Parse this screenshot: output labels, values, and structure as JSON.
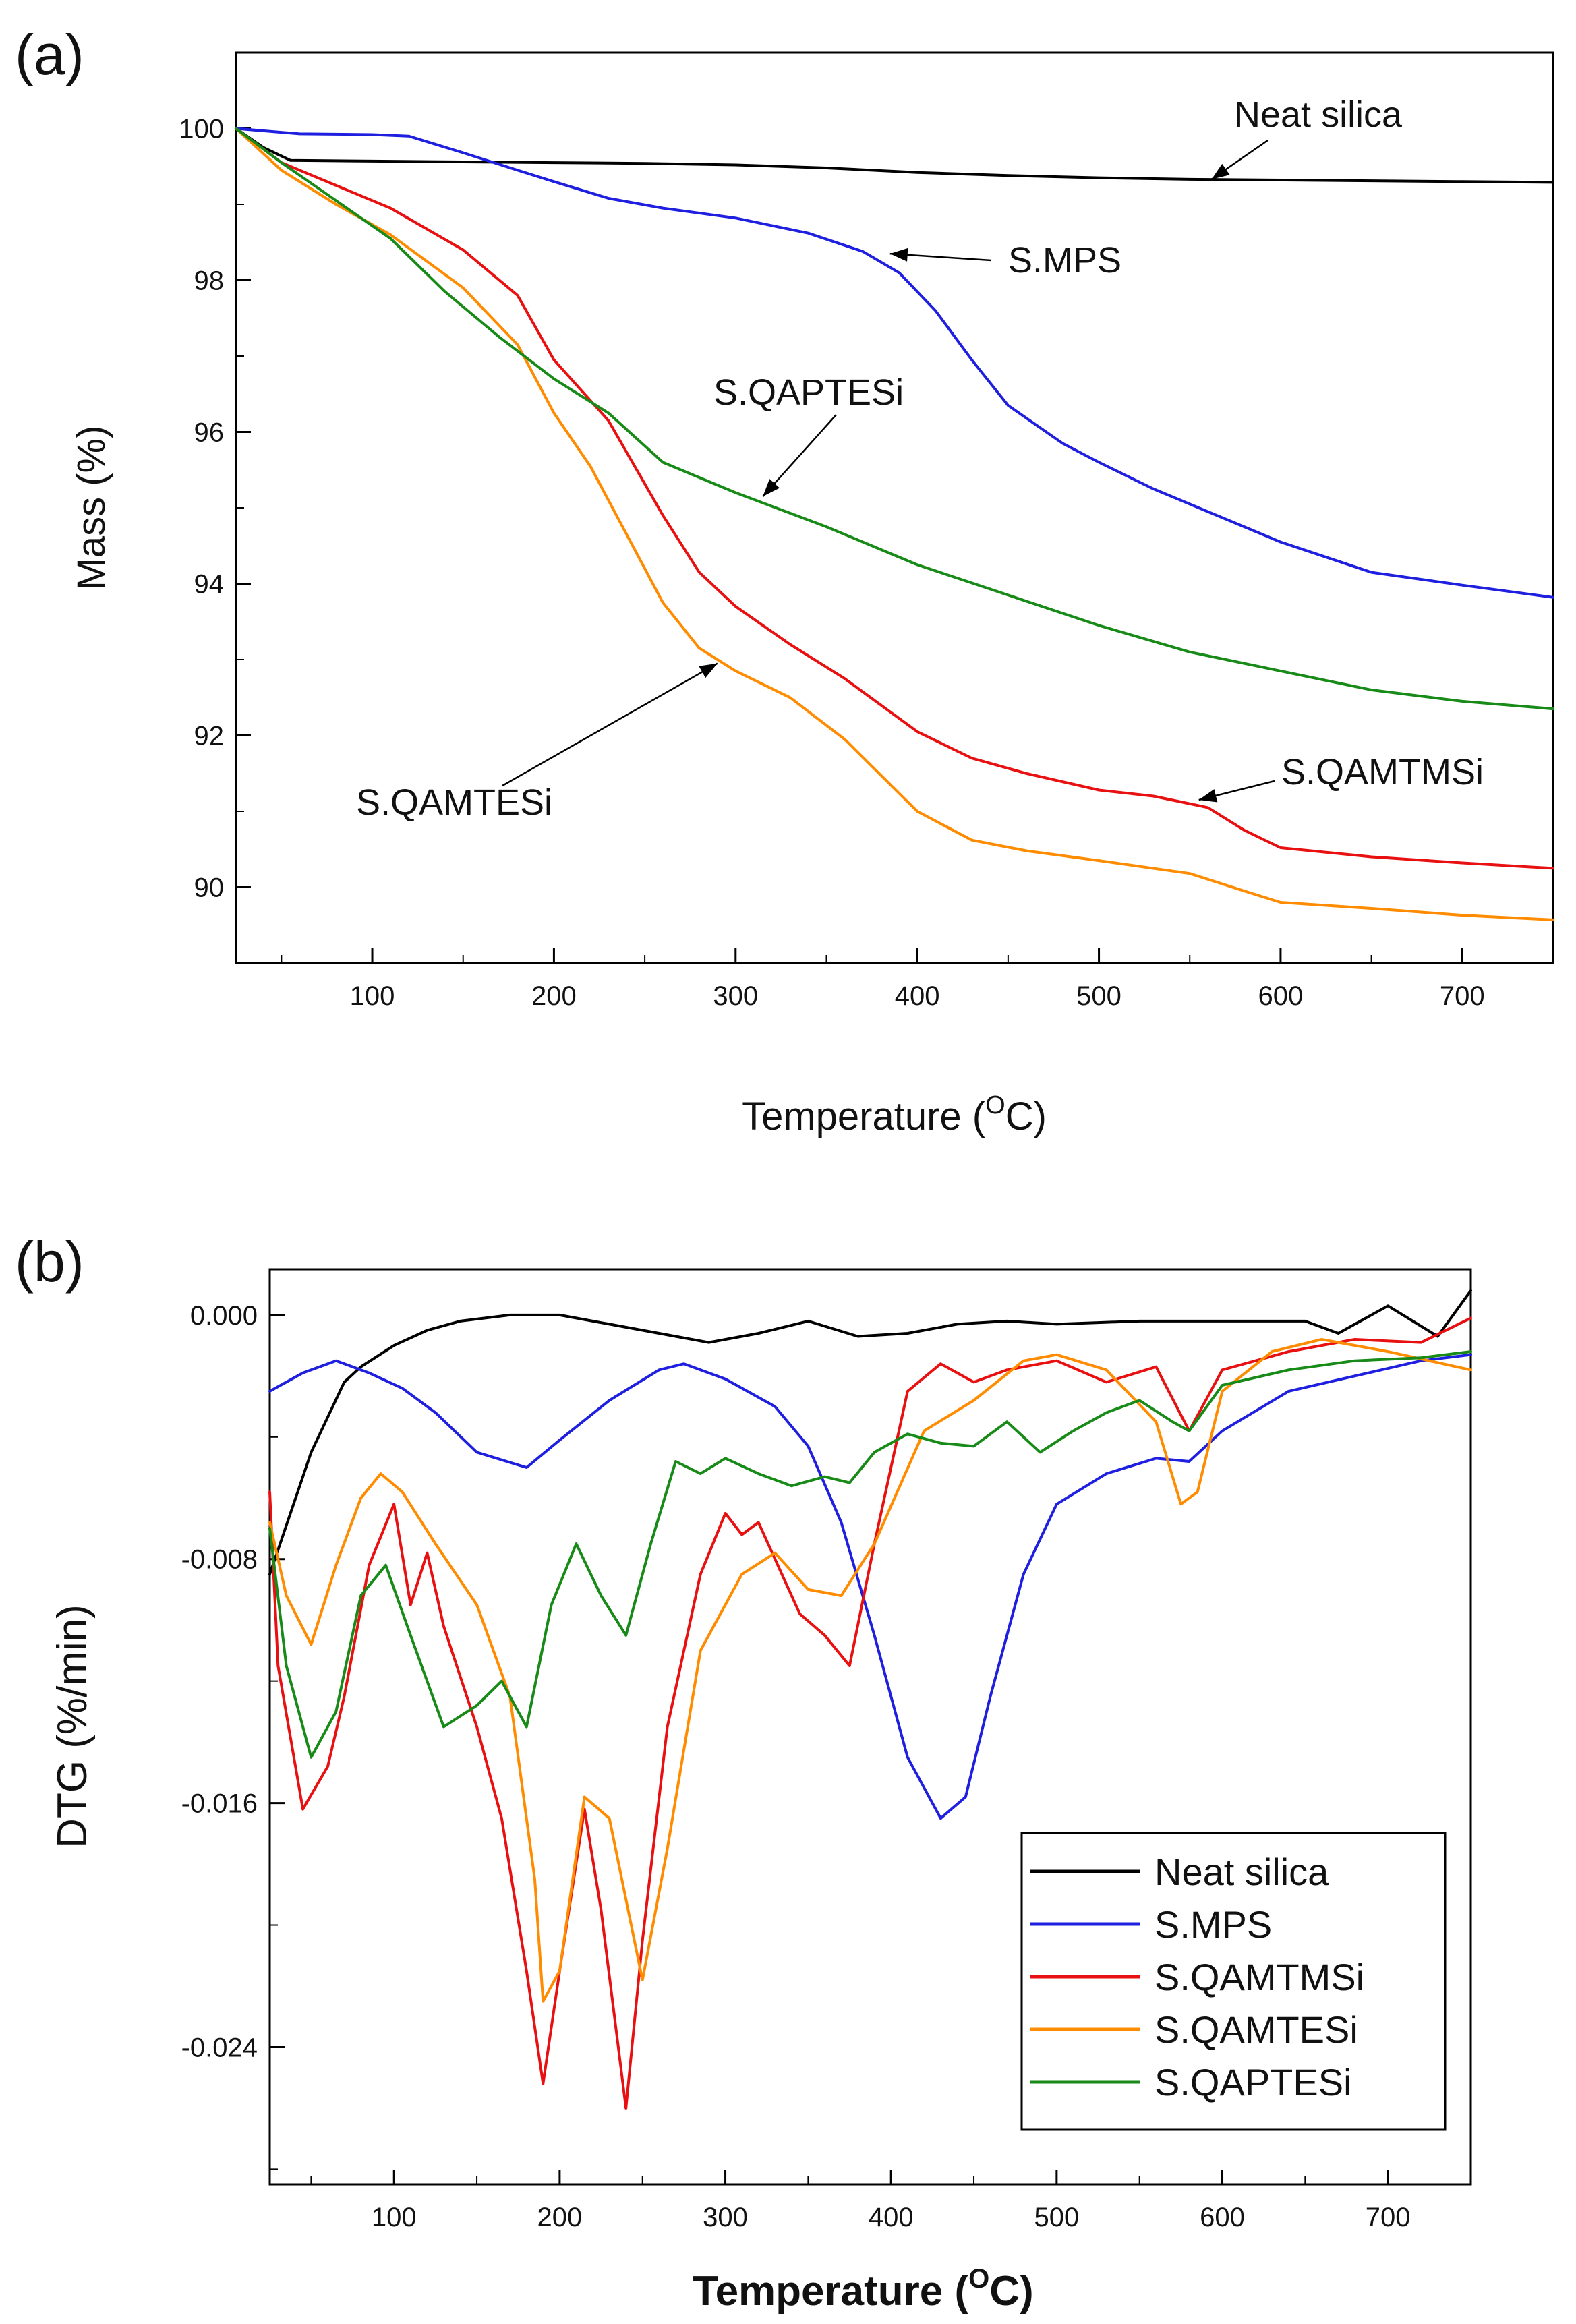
{
  "chart_data": [
    {
      "panel_label": "(a)",
      "type": "line",
      "title": "",
      "xlabel": "Temperature (",
      "xlabel_sup": "O",
      "xlabel_end": "C)",
      "ylabel": "Mass (%)",
      "xlim": [
        25,
        750
      ],
      "ylim": [
        89,
        101
      ],
      "xticks": [
        100,
        200,
        300,
        400,
        500,
        600,
        700
      ],
      "yticks": [
        90,
        92,
        94,
        96,
        98,
        100
      ],
      "grid": false,
      "series": [
        {
          "name": "Neat silica",
          "color": "#000000",
          "x": [
            25,
            40,
            55,
            100,
            150,
            200,
            250,
            300,
            350,
            400,
            450,
            500,
            550,
            600,
            650,
            700,
            750
          ],
          "y": [
            100.0,
            99.75,
            99.58,
            99.57,
            99.56,
            99.55,
            99.54,
            99.52,
            99.48,
            99.42,
            99.38,
            99.35,
            99.33,
            99.32,
            99.31,
            99.3,
            99.29
          ]
        },
        {
          "name": "S.MPS",
          "color": "#1f1fe0",
          "x": [
            25,
            60,
            100,
            120,
            150,
            180,
            200,
            230,
            260,
            300,
            340,
            370,
            390,
            410,
            430,
            450,
            480,
            500,
            530,
            570,
            600,
            650,
            700,
            750
          ],
          "y": [
            100.0,
            99.93,
            99.92,
            99.9,
            99.68,
            99.45,
            99.3,
            99.08,
            98.95,
            98.82,
            98.62,
            98.38,
            98.1,
            97.6,
            96.95,
            96.35,
            95.85,
            95.6,
            95.25,
            94.85,
            94.55,
            94.15,
            93.98,
            93.82
          ]
        },
        {
          "name": "S.QAMTMSi",
          "color": "#e81010",
          "x": [
            25,
            50,
            80,
            110,
            150,
            180,
            200,
            230,
            260,
            280,
            300,
            330,
            360,
            400,
            430,
            460,
            500,
            530,
            560,
            580,
            600,
            650,
            700,
            750
          ],
          "y": [
            100.0,
            99.55,
            99.25,
            98.95,
            98.4,
            97.8,
            96.95,
            96.15,
            94.9,
            94.15,
            93.7,
            93.2,
            92.75,
            92.05,
            91.7,
            91.5,
            91.28,
            91.2,
            91.05,
            90.75,
            90.52,
            90.4,
            90.32,
            90.25
          ]
        },
        {
          "name": "S.QAMTESi",
          "color": "#ff8c00",
          "x": [
            25,
            50,
            80,
            110,
            150,
            180,
            200,
            220,
            240,
            260,
            280,
            300,
            330,
            360,
            400,
            430,
            460,
            500,
            550,
            580,
            600,
            650,
            700,
            750
          ],
          "y": [
            100.0,
            99.45,
            99.0,
            98.6,
            97.9,
            97.15,
            96.25,
            95.55,
            94.65,
            93.75,
            93.15,
            92.85,
            92.5,
            91.95,
            91.0,
            90.62,
            90.48,
            90.35,
            90.18,
            89.95,
            89.8,
            89.72,
            89.63,
            89.57
          ]
        },
        {
          "name": "S.QAPTESi",
          "color": "#178a17",
          "x": [
            25,
            50,
            80,
            110,
            140,
            170,
            200,
            230,
            260,
            300,
            350,
            400,
            450,
            500,
            550,
            600,
            650,
            700,
            750
          ],
          "y": [
            100.0,
            99.55,
            99.05,
            98.55,
            97.85,
            97.25,
            96.7,
            96.25,
            95.6,
            95.2,
            94.75,
            94.25,
            93.85,
            93.45,
            93.1,
            92.85,
            92.6,
            92.45,
            92.35
          ]
        }
      ],
      "annotations": [
        {
          "text": "Neat silica",
          "target": [
            562,
            99.33
          ]
        },
        {
          "text": "S.MPS",
          "target": [
            385,
            98.35
          ]
        },
        {
          "text": "S.QAPTESi",
          "target": [
            315,
            95.15
          ]
        },
        {
          "text": "S.QAMTESi",
          "target": [
            290,
            92.95
          ]
        },
        {
          "text": "S.QAMTMSi",
          "target": [
            555,
            91.15
          ]
        }
      ]
    },
    {
      "panel_label": "(b)",
      "type": "line",
      "title": "",
      "xlabel": "Temperature (",
      "xlabel_sup": "O",
      "xlabel_end": "C)",
      "ylabel": "DTG (%/min)",
      "xlim": [
        25,
        750
      ],
      "ylim": [
        -0.0285,
        0.0015
      ],
      "xticks": [
        100,
        200,
        300,
        400,
        500,
        600,
        700
      ],
      "xtick_labels": [
        "100",
        "200",
        "300",
        "400",
        "500",
        "600",
        "700"
      ],
      "yticks": [
        0.0,
        -0.008,
        -0.016,
        -0.024
      ],
      "ytick_labels": [
        "0.000",
        "-0.008",
        "-0.016",
        "-0.024"
      ],
      "grid": false,
      "legend": {
        "position": "lower-right",
        "entries": [
          "Neat silica",
          "S.MPS",
          "S.QAMTMSi",
          "S.QAMTESi",
          "S.QAPTESi"
        ]
      },
      "series": [
        {
          "name": "Neat silica",
          "color": "#000000",
          "x": [
            25,
            50,
            70,
            80,
            100,
            120,
            140,
            170,
            200,
            230,
            260,
            290,
            320,
            350,
            380,
            410,
            440,
            470,
            500,
            550,
            600,
            650,
            670,
            700,
            730,
            750
          ],
          "y": [
            -0.0085,
            -0.0045,
            -0.0022,
            -0.0017,
            -0.001,
            -0.0005,
            -0.0002,
            0.0,
            0.0,
            -0.0003,
            -0.0006,
            -0.0009,
            -0.0006,
            -0.0002,
            -0.0007,
            -0.0006,
            -0.0003,
            -0.0002,
            -0.0003,
            -0.0002,
            -0.0002,
            -0.0002,
            -0.0006,
            0.0003,
            -0.0007,
            0.0008
          ]
        },
        {
          "name": "S.MPS",
          "color": "#1f1fe0",
          "x": [
            25,
            45,
            65,
            85,
            105,
            125,
            150,
            180,
            200,
            230,
            260,
            275,
            300,
            330,
            350,
            370,
            390,
            410,
            430,
            445,
            460,
            480,
            500,
            530,
            560,
            580,
            600,
            640,
            680,
            720,
            750
          ],
          "y": [
            -0.0025,
            -0.0019,
            -0.0015,
            -0.0019,
            -0.0024,
            -0.0032,
            -0.0045,
            -0.005,
            -0.0041,
            -0.0028,
            -0.0018,
            -0.0016,
            -0.0021,
            -0.003,
            -0.0043,
            -0.0068,
            -0.0105,
            -0.0145,
            -0.0165,
            -0.0158,
            -0.0125,
            -0.0085,
            -0.0062,
            -0.0052,
            -0.0047,
            -0.0048,
            -0.0038,
            -0.0025,
            -0.002,
            -0.0015,
            -0.0013
          ]
        },
        {
          "name": "S.QAMTMSi",
          "color": "#e81010",
          "x": [
            25,
            30,
            45,
            60,
            70,
            85,
            100,
            110,
            120,
            130,
            150,
            165,
            180,
            190,
            200,
            215,
            225,
            240,
            250,
            265,
            285,
            300,
            310,
            320,
            330,
            345,
            360,
            375,
            390,
            410,
            430,
            450,
            470,
            500,
            530,
            560,
            580,
            600,
            640,
            680,
            720,
            750
          ],
          "y": [
            -0.0058,
            -0.0115,
            -0.0162,
            -0.0148,
            -0.0125,
            -0.0082,
            -0.0062,
            -0.0095,
            -0.0078,
            -0.0102,
            -0.0135,
            -0.0165,
            -0.0215,
            -0.0252,
            -0.0215,
            -0.0162,
            -0.0195,
            -0.026,
            -0.0205,
            -0.0135,
            -0.0085,
            -0.0065,
            -0.0072,
            -0.0068,
            -0.008,
            -0.0098,
            -0.0105,
            -0.0115,
            -0.0075,
            -0.0025,
            -0.0016,
            -0.0022,
            -0.0018,
            -0.0015,
            -0.0022,
            -0.0017,
            -0.0038,
            -0.0018,
            -0.0012,
            -0.0008,
            -0.0009,
            -0.0001
          ]
        },
        {
          "name": "S.QAMTESi",
          "color": "#ff8c00",
          "x": [
            25,
            35,
            50,
            65,
            80,
            92,
            105,
            125,
            150,
            170,
            185,
            190,
            200,
            215,
            230,
            250,
            265,
            285,
            310,
            330,
            350,
            370,
            390,
            420,
            450,
            480,
            500,
            530,
            560,
            575,
            585,
            600,
            630,
            660,
            700,
            750
          ],
          "y": [
            -0.0068,
            -0.0092,
            -0.0108,
            -0.0082,
            -0.006,
            -0.0052,
            -0.0058,
            -0.0075,
            -0.0095,
            -0.0125,
            -0.0185,
            -0.0225,
            -0.0215,
            -0.0158,
            -0.0165,
            -0.0218,
            -0.0175,
            -0.011,
            -0.0085,
            -0.0078,
            -0.009,
            -0.0092,
            -0.0075,
            -0.0038,
            -0.0028,
            -0.0015,
            -0.0013,
            -0.0018,
            -0.0035,
            -0.0062,
            -0.0058,
            -0.0025,
            -0.0012,
            -0.0008,
            -0.0012,
            -0.0018
          ]
        },
        {
          "name": "S.QAPTESi",
          "color": "#178a17",
          "x": [
            25,
            35,
            50,
            65,
            80,
            95,
            110,
            130,
            150,
            165,
            180,
            195,
            210,
            225,
            240,
            255,
            270,
            285,
            300,
            320,
            340,
            360,
            375,
            390,
            410,
            430,
            450,
            470,
            490,
            510,
            530,
            550,
            570,
            580,
            600,
            640,
            680,
            720,
            750
          ],
          "y": [
            -0.007,
            -0.0115,
            -0.0145,
            -0.013,
            -0.0092,
            -0.0082,
            -0.0105,
            -0.0135,
            -0.0128,
            -0.012,
            -0.0135,
            -0.0095,
            -0.0075,
            -0.0092,
            -0.0105,
            -0.0075,
            -0.0048,
            -0.0052,
            -0.0047,
            -0.0052,
            -0.0056,
            -0.0053,
            -0.0055,
            -0.0045,
            -0.0039,
            -0.0042,
            -0.0043,
            -0.0035,
            -0.0045,
            -0.0038,
            -0.0032,
            -0.0028,
            -0.0035,
            -0.0038,
            -0.0023,
            -0.0018,
            -0.0015,
            -0.0014,
            -0.0012
          ]
        }
      ]
    }
  ]
}
